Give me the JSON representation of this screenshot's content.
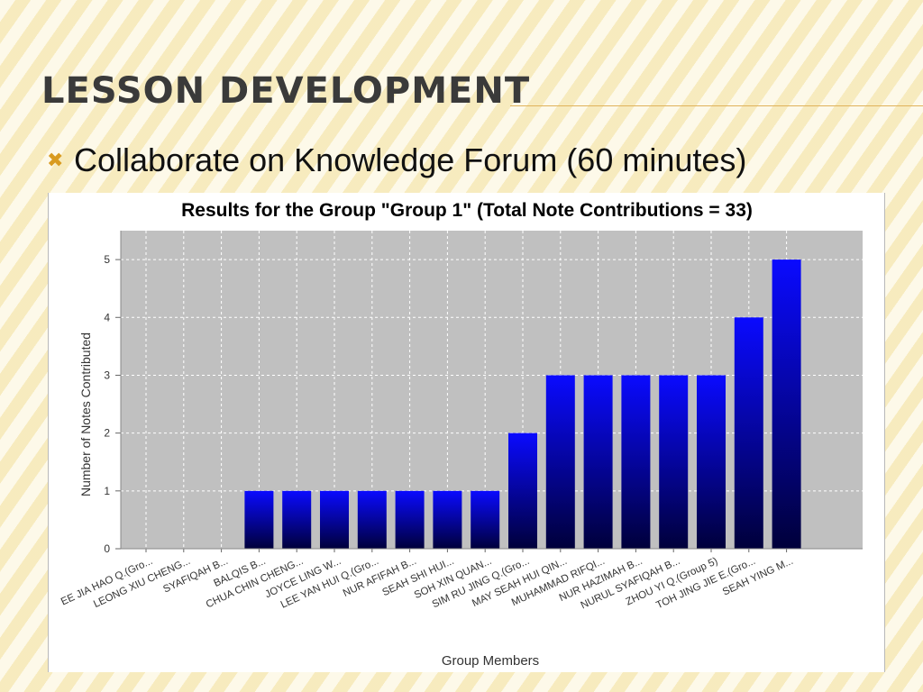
{
  "slide": {
    "title": "LESSON DEVELOPMENT",
    "bullet_icon": "cross-bullet-icon",
    "bullet_text": "Collaborate on Knowledge Forum (60 minutes)"
  },
  "colors": {
    "accent": "#d99b20",
    "bar_top": "#0a0aff",
    "bar_bottom": "#00003a",
    "plot_background": "#c0c0c0"
  },
  "chart_data": {
    "type": "bar",
    "title": "Results for the Group \"Group 1\" (Total Note Contributions = 33)",
    "xlabel": "Group Members",
    "ylabel": "Number of Notes Contributed",
    "ylim": [
      0,
      5.5
    ],
    "yticks": [
      0,
      1,
      2,
      3,
      4,
      5
    ],
    "grid": true,
    "legend": "none",
    "categories": [
      "EE JIA HAO Q.(Gro...",
      "LEONG XIU CHENG...",
      "SYAFIQAH B...",
      "BALQIS B...",
      "CHUA CHIN CHENG...",
      "JOYCE LING W...",
      "LEE YAN HUI Q.(Gro...",
      "NUR AFIFAH B...",
      "SEAH SHI HUI...",
      "SOH XIN QUAN...",
      "SIM RU JING Q.(Gro...",
      "MAY SEAH HUI QIN...",
      "MUHAMMAD RIFQI...",
      "NUR HAZIMAH B...",
      "NURUL SYAFIQAH B...",
      "ZHOU YI Q.(Group 5)",
      "TOH JING JIE E.(Gro...",
      "SEAH YING M..."
    ],
    "values": [
      0,
      0,
      0,
      1,
      1,
      1,
      1,
      1,
      1,
      1,
      2,
      3,
      3,
      3,
      3,
      3,
      4,
      5
    ]
  }
}
